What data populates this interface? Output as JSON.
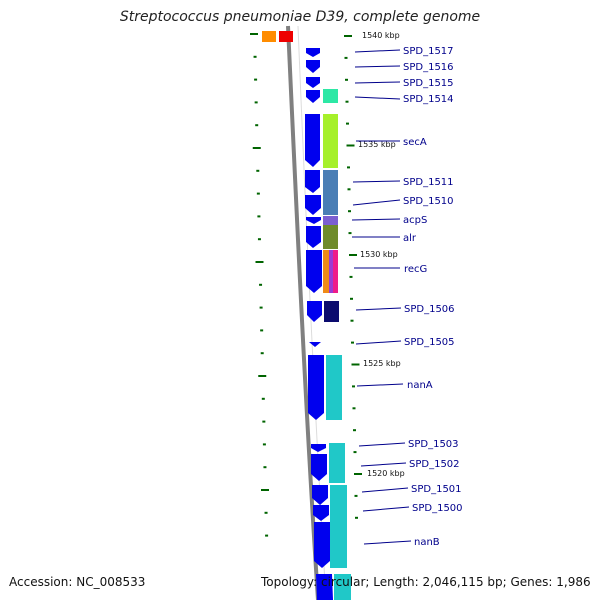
{
  "title": "Streptococcus pneumoniae D39, complete genome",
  "footer": {
    "accession": "Accession: NC_008533",
    "summary": "Topology: circular; Length: 2,046,115 bp; Genes: 1,986"
  },
  "colors": {
    "backbone": "#808080",
    "strand": "#0000ee",
    "tick": "#006400",
    "label": "#00008b"
  },
  "scale_labels": [
    "1540 kbp",
    "1535 kbp",
    "1530 kbp",
    "1525 kbp",
    "1520 kbp"
  ],
  "genes": [
    {
      "id": "spd1517",
      "label": "SPD_1517",
      "cog": null
    },
    {
      "id": "spd1516",
      "label": "SPD_1516",
      "cog": null
    },
    {
      "id": "spd1515",
      "label": "SPD_1515",
      "cog": null
    },
    {
      "id": "spd1514",
      "label": "SPD_1514",
      "cog": "#2de8a5"
    },
    {
      "id": "secA",
      "label": "secA",
      "cog": "#a6f02a"
    },
    {
      "id": "spd1511",
      "label": "SPD_1511",
      "cog": "#4a7eb5"
    },
    {
      "id": "spd1510",
      "label": "SPD_1510",
      "cog": "#4a7eb5"
    },
    {
      "id": "acpS",
      "label": "acpS",
      "cog": "#7b5fd0"
    },
    {
      "id": "alr",
      "label": "alr",
      "cog": "#6e8b2a"
    },
    {
      "id": "recG",
      "label": "recG",
      "cog": "#f08a18"
    },
    {
      "id": "spd1506",
      "label": "SPD_1506",
      "cog": "#0b0b6e"
    },
    {
      "id": "spd1505",
      "label": "SPD_1505",
      "cog": null
    },
    {
      "id": "nanA",
      "label": "nanA",
      "cog": "#20c8c8"
    },
    {
      "id": "spd1503",
      "label": "SPD_1503",
      "cog": "#20c8c8"
    },
    {
      "id": "spd1502",
      "label": "SPD_1502",
      "cog": "#20c8c8"
    },
    {
      "id": "spd1501",
      "label": "SPD_1501",
      "cog": "#20c8c8"
    },
    {
      "id": "spd1500",
      "label": "SPD_1500",
      "cog": "#20c8c8"
    },
    {
      "id": "nanB",
      "label": "nanB",
      "cog": "#20c8c8"
    }
  ]
}
